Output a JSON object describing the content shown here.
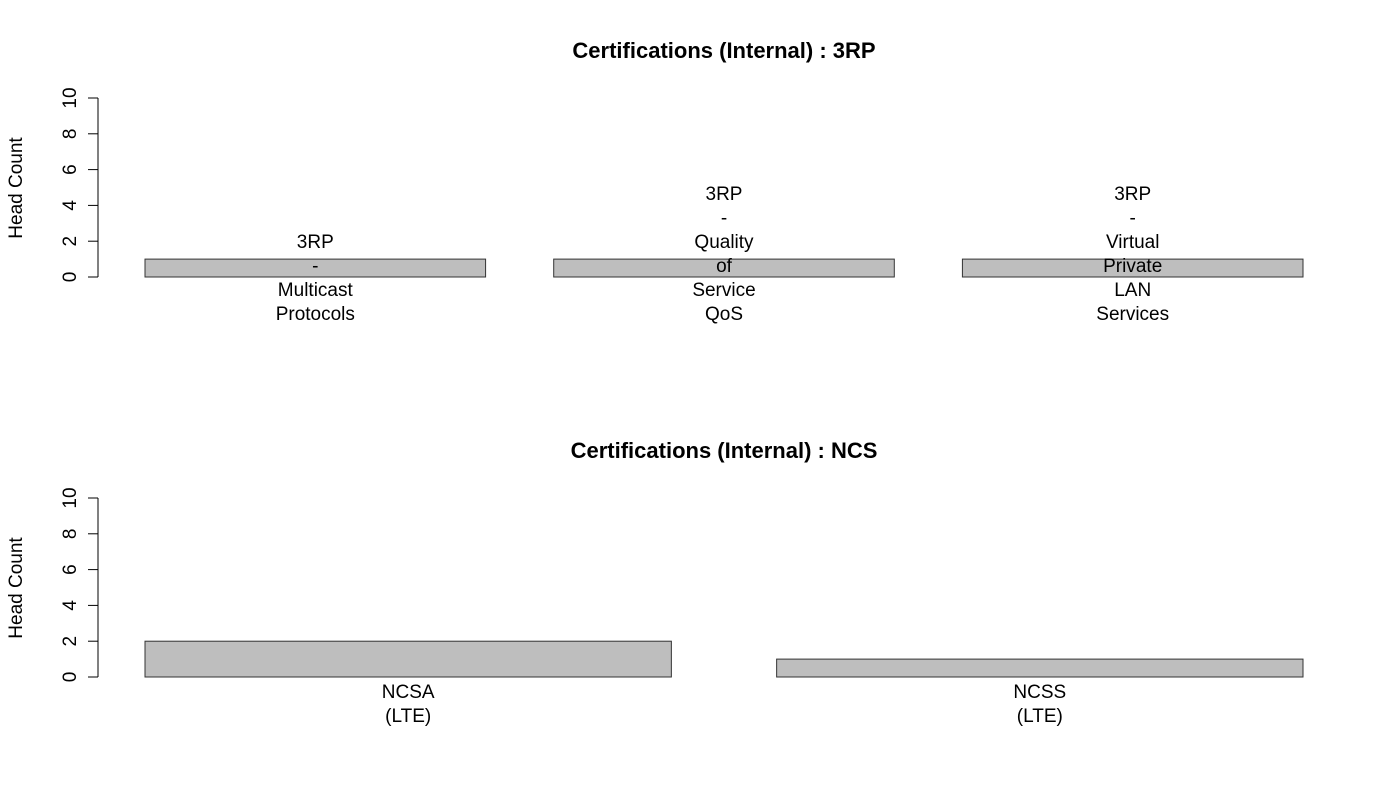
{
  "chart_data": [
    {
      "type": "bar",
      "title": "Certifications (Internal) : 3RP",
      "xlabel": "",
      "ylabel": "Head Count",
      "ylim": [
        0,
        10
      ],
      "yticks": [
        0,
        2,
        4,
        6,
        8,
        10
      ],
      "categories": [
        "3RP - Multicast Protocols",
        "3RP - Quality of Service QoS",
        "3RP - Virtual Private LAN Services"
      ],
      "category_label_lines": [
        [
          "3RP",
          "-",
          "Multicast",
          "Protocols"
        ],
        [
          "3RP",
          "-",
          "Quality",
          "of",
          "Service",
          "QoS"
        ],
        [
          "3RP",
          "-",
          "Virtual",
          "Private",
          "LAN",
          "Services"
        ]
      ],
      "values": [
        1,
        1,
        1
      ],
      "bar_color": "#bebebe",
      "grid": false,
      "legend": "none"
    },
    {
      "type": "bar",
      "title": "Certifications (Internal) : NCS",
      "xlabel": "",
      "ylabel": "Head Count",
      "ylim": [
        0,
        10
      ],
      "yticks": [
        0,
        2,
        4,
        6,
        8,
        10
      ],
      "categories": [
        "NCSA (LTE)",
        "NCSS (LTE)"
      ],
      "category_label_lines": [
        [
          "NCSA",
          "(LTE)"
        ],
        [
          "NCSS",
          "(LTE)"
        ]
      ],
      "values": [
        2,
        1
      ],
      "bar_color": "#bebebe",
      "grid": false,
      "legend": "none"
    }
  ]
}
